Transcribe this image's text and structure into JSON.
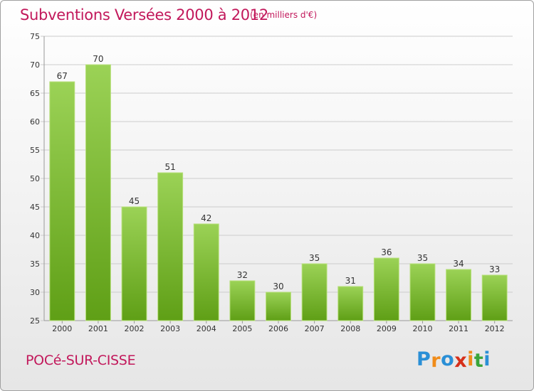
{
  "title": "Subventions Versées 2000 à 2012",
  "subtitle": "(en milliers d'€)",
  "place": "POCé-SUR-CISSE",
  "logo": {
    "text": "Proxiti",
    "letters": [
      "P",
      "r",
      "o",
      "x",
      "i",
      "t",
      "i"
    ],
    "colors": [
      "#2a8fd6",
      "#f08c1a",
      "#2a8fd6",
      "#d6301a",
      "#f08c1a",
      "#3aa53a",
      "#2a8fd6"
    ]
  },
  "colors": {
    "bar_top": "#9bd256",
    "bar_bottom": "#5f9f16",
    "title": "#c2185b",
    "grid": "#cccccc"
  },
  "chart_data": {
    "type": "bar",
    "categories": [
      "2000",
      "2001",
      "2002",
      "2003",
      "2004",
      "2005",
      "2006",
      "2007",
      "2008",
      "2009",
      "2010",
      "2011",
      "2012"
    ],
    "values": [
      67,
      70,
      45,
      51,
      42,
      32,
      30,
      35,
      31,
      36,
      35,
      34,
      33
    ],
    "ylim": [
      25,
      75
    ],
    "yticks": [
      25,
      30,
      35,
      40,
      45,
      50,
      55,
      60,
      65,
      70,
      75
    ],
    "grid": true,
    "title": "Subventions Versées 2000 à 2012",
    "subtitle": "(en milliers d'€)"
  }
}
